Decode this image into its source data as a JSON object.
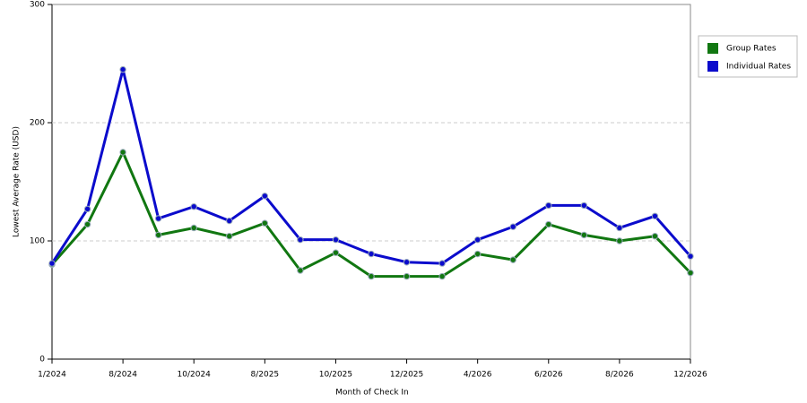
{
  "chart_data": {
    "type": "line",
    "x_label": "Month of Check In",
    "y_label": "Lowest Average Rate (USD)",
    "categories": [
      "1/2024",
      null,
      "8/2024",
      null,
      "10/2024",
      null,
      "8/2025",
      null,
      "10/2025",
      null,
      "12/2025",
      null,
      "4/2026",
      null,
      "6/2026",
      null,
      "8/2026",
      null,
      "12/2026"
    ],
    "series": [
      {
        "name": "Group Rates",
        "color": "#117711",
        "values": [
          80,
          114,
          175,
          105,
          111,
          104,
          115,
          75,
          90,
          70,
          70,
          70,
          89,
          84,
          114,
          105,
          100,
          104,
          73
        ]
      },
      {
        "name": "Individual Rates",
        "color": "#0b0bcc",
        "values": [
          81,
          127,
          245,
          119,
          129,
          117,
          138,
          101,
          101,
          89,
          82,
          81,
          101,
          112,
          130,
          130,
          111,
          121,
          87
        ]
      }
    ],
    "ylim": [
      0,
      300
    ],
    "yticks": [
      0,
      100,
      200,
      300
    ],
    "grid": true,
    "legend": "right"
  }
}
